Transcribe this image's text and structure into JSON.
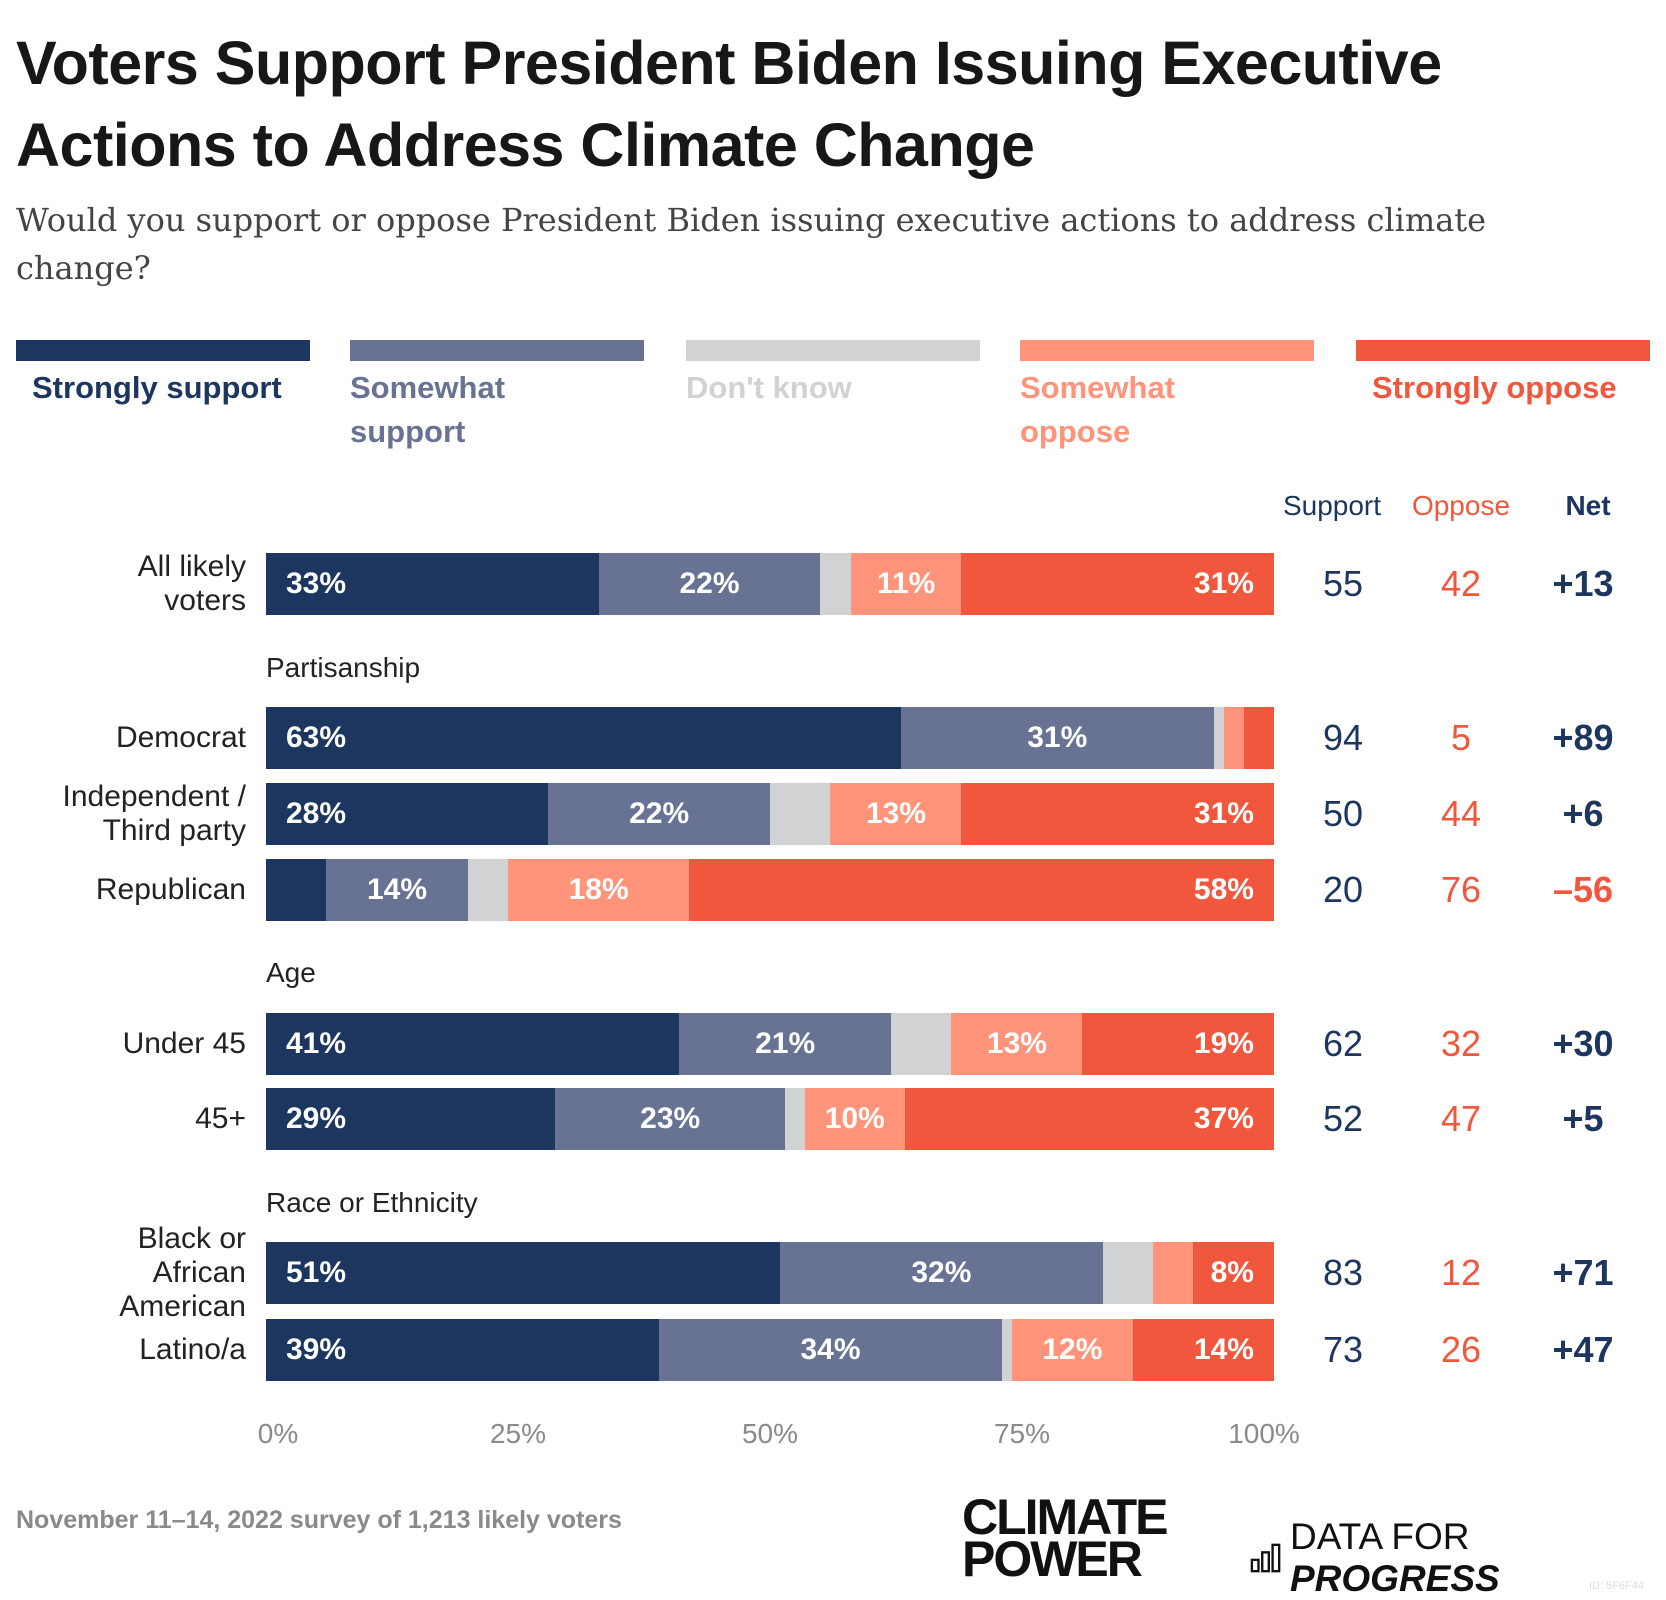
{
  "title": "Voters Support President Biden Issuing Executive Actions to Address Climate Change",
  "subtitle": "Would you support or oppose President Biden issuing executive actions to address climate change?",
  "colors": {
    "strongly_support": "#1c365f",
    "somewhat_support": "#687394",
    "dont_know": "#d1d2d4",
    "somewhat_oppose": "#ff947a",
    "strongly_oppose": "#f1573d"
  },
  "legend": [
    {
      "label": "Strongly support",
      "key": "strongly_support"
    },
    {
      "label": "Somewhat support",
      "key": "somewhat_support"
    },
    {
      "label": "Don't know",
      "key": "dont_know"
    },
    {
      "label": "Somewhat oppose",
      "key": "somewhat_oppose"
    },
    {
      "label": "Strongly oppose",
      "key": "strongly_oppose"
    }
  ],
  "column_headers": {
    "support": "Support",
    "oppose": "Oppose",
    "net": "Net"
  },
  "footnote": "November 11–14, 2022 survey of 1,213 likely voters",
  "logos": {
    "climate_power": "CLIMATE POWER",
    "data_for_progress": "DATA FOR PROGRESS"
  },
  "image_id": "ID: 5F6F44",
  "chart_data": {
    "type": "bar",
    "orientation": "horizontal-stacked",
    "title": "Voters Support President Biden Issuing Executive Actions to Address Climate Change",
    "xlim": [
      0,
      100
    ],
    "x_ticks": [
      "0%",
      "25%",
      "50%",
      "75%",
      "100%"
    ],
    "series_names": [
      "Strongly support",
      "Somewhat support",
      "Don't know",
      "Somewhat oppose",
      "Strongly oppose"
    ],
    "groups": [
      {
        "name": "",
        "rows": [
          {
            "label": "All likely voters",
            "values": [
              33,
              22,
              3,
              11,
              31
            ],
            "labels": [
              "33%",
              "22%",
              "",
              "11%",
              "31%"
            ],
            "support": "55",
            "oppose": "42",
            "net": "+13"
          }
        ]
      },
      {
        "name": "Partisanship",
        "rows": [
          {
            "label": "Democrat",
            "values": [
              63,
              31,
              1,
              2,
              3
            ],
            "labels": [
              "63%",
              "31%",
              "",
              "",
              ""
            ],
            "support": "94",
            "oppose": "5",
            "net": "+89"
          },
          {
            "label": "Independent / Third party",
            "values": [
              28,
              22,
              6,
              13,
              31
            ],
            "labels": [
              "28%",
              "22%",
              "",
              "13%",
              "31%"
            ],
            "support": "50",
            "oppose": "44",
            "net": "+6"
          },
          {
            "label": "Republican",
            "values": [
              6,
              14,
              4,
              18,
              58
            ],
            "labels": [
              "",
              "14%",
              "",
              "18%",
              "58%"
            ],
            "support": "20",
            "oppose": "76",
            "net": "–56"
          }
        ]
      },
      {
        "name": "Age",
        "rows": [
          {
            "label": "Under 45",
            "values": [
              41,
              21,
              6,
              13,
              19
            ],
            "labels": [
              "41%",
              "21%",
              "",
              "13%",
              "19%"
            ],
            "support": "62",
            "oppose": "32",
            "net": "+30"
          },
          {
            "label": "45+",
            "values": [
              29,
              23,
              2,
              10,
              37
            ],
            "labels": [
              "29%",
              "23%",
              "",
              "10%",
              "37%"
            ],
            "support": "52",
            "oppose": "47",
            "net": "+5"
          }
        ]
      },
      {
        "name": "Race or Ethnicity",
        "rows": [
          {
            "label": "Black or African American",
            "values": [
              51,
              32,
              5,
              4,
              8
            ],
            "labels": [
              "51%",
              "32%",
              "",
              "",
              "8%"
            ],
            "support": "83",
            "oppose": "12",
            "net": "+71"
          },
          {
            "label": "Latino/a",
            "values": [
              39,
              34,
              1,
              12,
              14
            ],
            "labels": [
              "39%",
              "34%",
              "",
              "12%",
              "14%"
            ],
            "support": "73",
            "oppose": "26",
            "net": "+47"
          }
        ]
      }
    ]
  }
}
